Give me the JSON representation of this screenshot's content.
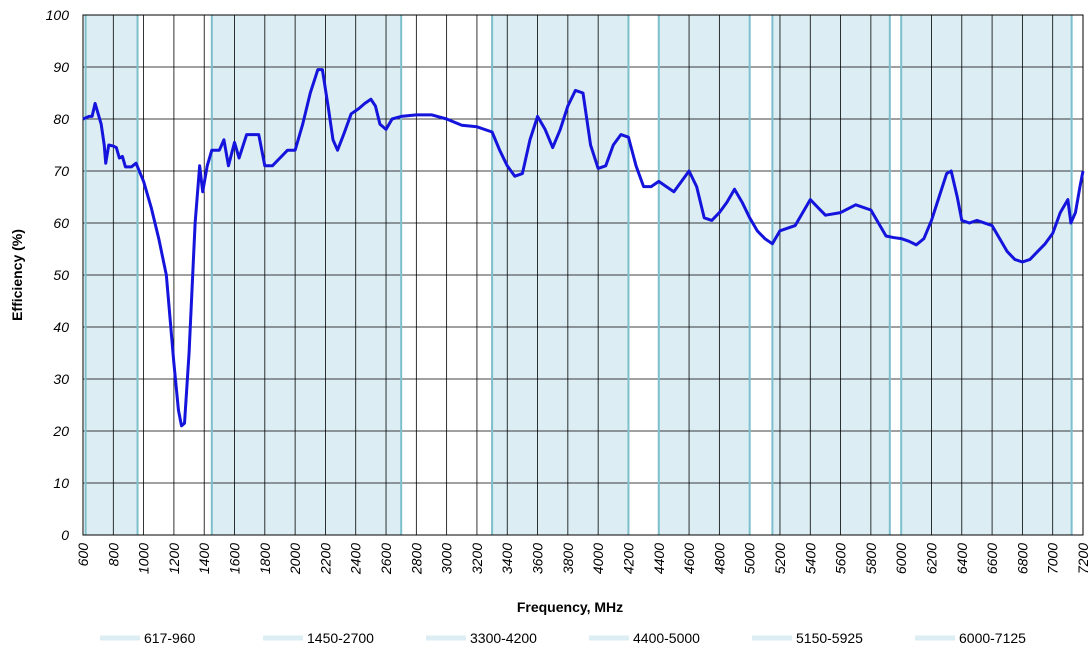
{
  "chart_data": {
    "type": "line",
    "xlabel": "Frequency, MHz",
    "ylabel": "Efficiency (%)",
    "xlim": [
      600,
      7200
    ],
    "ylim": [
      0,
      100
    ],
    "xticks": [
      600,
      800,
      1000,
      1200,
      1400,
      1600,
      1800,
      2000,
      2200,
      2400,
      2600,
      2800,
      3000,
      3200,
      3400,
      3600,
      3800,
      4000,
      4200,
      4400,
      4600,
      4800,
      5000,
      5200,
      5400,
      5600,
      5800,
      6000,
      6200,
      6400,
      6600,
      6800,
      7000,
      7200
    ],
    "yticks": [
      0,
      10,
      20,
      30,
      40,
      50,
      60,
      70,
      80,
      90,
      100
    ],
    "grid": true,
    "band_color": "#dcedf3",
    "bands": [
      {
        "label": "617-960",
        "start": 617,
        "end": 960
      },
      {
        "label": "1450-2700",
        "start": 1450,
        "end": 2700
      },
      {
        "label": "3300-4200",
        "start": 3300,
        "end": 4200
      },
      {
        "label": "4400-5000",
        "start": 4400,
        "end": 5000
      },
      {
        "label": "5150-5925",
        "start": 5150,
        "end": 5925
      },
      {
        "label": "6000-7125",
        "start": 6000,
        "end": 7125
      }
    ],
    "series": [
      {
        "color": "#1414dc",
        "x": [
          600,
          640,
          660,
          680,
          700,
          720,
          740,
          750,
          770,
          800,
          820,
          840,
          860,
          880,
          920,
          950,
          1000,
          1050,
          1100,
          1150,
          1200,
          1230,
          1250,
          1270,
          1300,
          1340,
          1370,
          1390,
          1420,
          1450,
          1500,
          1530,
          1560,
          1600,
          1630,
          1680,
          1720,
          1760,
          1800,
          1850,
          1900,
          1950,
          2000,
          2050,
          2100,
          2150,
          2180,
          2220,
          2250,
          2280,
          2320,
          2370,
          2420,
          2460,
          2500,
          2530,
          2560,
          2600,
          2640,
          2700,
          2800,
          2900,
          3000,
          3100,
          3200,
          3300,
          3350,
          3400,
          3450,
          3500,
          3550,
          3600,
          3650,
          3700,
          3750,
          3800,
          3850,
          3900,
          3950,
          4000,
          4050,
          4100,
          4150,
          4200,
          4250,
          4300,
          4350,
          4400,
          4450,
          4500,
          4550,
          4600,
          4650,
          4700,
          4750,
          4800,
          4850,
          4900,
          4950,
          5000,
          5050,
          5100,
          5150,
          5200,
          5250,
          5300,
          5350,
          5400,
          5450,
          5500,
          5600,
          5700,
          5800,
          5850,
          5900,
          5950,
          6000,
          6050,
          6100,
          6150,
          6200,
          6250,
          6300,
          6330,
          6370,
          6400,
          6450,
          6500,
          6600,
          6650,
          6700,
          6750,
          6800,
          6850,
          6900,
          6950,
          7000,
          7050,
          7100,
          7120,
          7150,
          7180,
          7200
        ],
        "values": [
          80,
          80.5,
          80.5,
          83,
          81,
          79,
          75,
          71.5,
          75,
          74.8,
          74.5,
          72.5,
          72.8,
          70.8,
          70.8,
          71.5,
          68,
          63,
          57,
          50,
          33,
          24,
          21,
          21.5,
          35,
          60,
          71,
          66,
          71,
          74,
          74,
          76,
          71,
          75.5,
          72.5,
          77,
          77,
          77,
          71,
          71,
          72.5,
          74,
          74,
          79,
          85,
          89.5,
          89.5,
          82,
          76,
          74,
          77,
          81,
          82,
          83,
          83.8,
          82.5,
          79,
          78,
          80,
          80.5,
          80.8,
          80.8,
          80,
          78.8,
          78.5,
          77.5,
          74,
          71,
          69,
          69.5,
          76,
          80.5,
          78,
          74.5,
          78,
          82.5,
          85.5,
          85,
          75,
          70.5,
          71,
          75,
          77,
          76.5,
          71,
          67,
          67,
          68,
          67,
          66,
          68,
          70,
          67,
          61,
          60.5,
          62,
          64,
          66.5,
          64,
          61,
          58.5,
          57,
          56,
          58.5,
          59,
          59.5,
          62,
          64.5,
          63,
          61.5,
          62,
          63.5,
          62.5,
          60,
          57.5,
          57.2,
          57,
          56.5,
          55.8,
          57,
          60.5,
          65,
          69.5,
          70,
          65,
          60.5,
          60,
          60.5,
          59.5,
          57,
          54.5,
          53,
          52.5,
          53,
          54.5,
          56,
          58,
          62,
          64.5,
          60,
          62,
          67,
          70
        ]
      }
    ]
  }
}
